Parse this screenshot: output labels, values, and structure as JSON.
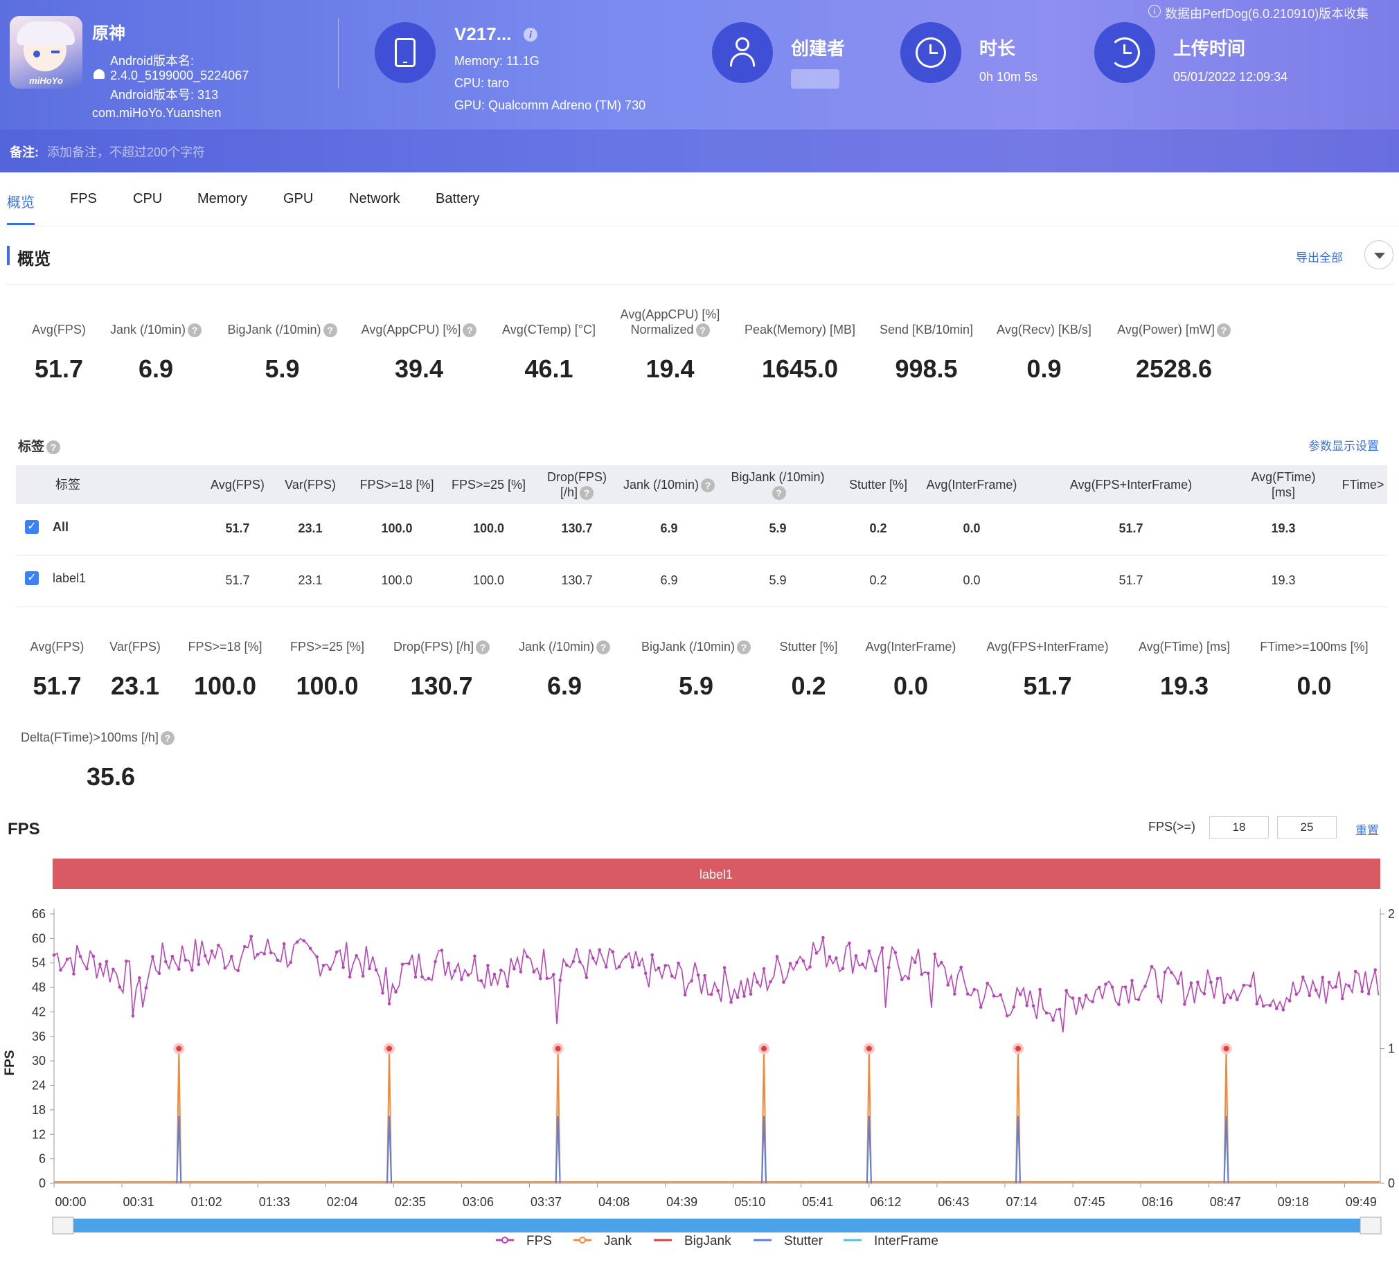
{
  "app": {
    "name": "原神",
    "version_name_label": "Android版本名:",
    "version_name": "2.4.0_5199000_5224067",
    "version_code_label": "Android版本号: 313",
    "package": "com.miHoYo.Yuanshen",
    "logo_text": "miHoYo"
  },
  "device": {
    "name": "V217...",
    "memory": "Memory: 11.1G",
    "cpu": "CPU: taro",
    "gpu": "GPU: Qualcomm Adreno (TM) 730"
  },
  "creator": {
    "label": "创建者"
  },
  "duration": {
    "label": "时长",
    "value": "0h 10m 5s"
  },
  "upload": {
    "label": "上传时间",
    "value": "05/01/2022 12:09:34"
  },
  "source_note": "数据由PerfDog(6.0.210910)版本收集",
  "note": {
    "label": "备注:",
    "placeholder": "添加备注，不超过200个字符"
  },
  "tabs": [
    "概览",
    "FPS",
    "CPU",
    "Memory",
    "GPU",
    "Network",
    "Battery"
  ],
  "overview": {
    "title": "概览",
    "export": "导出全部",
    "metrics": [
      {
        "label": "Avg(FPS)",
        "value": "51.7"
      },
      {
        "label": "Jank (/10min)",
        "value": "6.9"
      },
      {
        "label": "BigJank (/10min)",
        "value": "5.9"
      },
      {
        "label": "Avg(AppCPU) [%]",
        "value": "39.4"
      },
      {
        "label": "Avg(CTemp) [°C]",
        "value": "46.1"
      },
      {
        "label": "Avg(AppCPU) [%]",
        "label2": "Normalized",
        "value": "19.4"
      },
      {
        "label": "Peak(Memory) [MB]",
        "value": "1645.0"
      },
      {
        "label": "Send [KB/10min]",
        "value": "998.5"
      },
      {
        "label": "Avg(Recv) [KB/s]",
        "value": "0.9"
      },
      {
        "label": "Avg(Power) [mW]",
        "value": "2528.6"
      }
    ]
  },
  "tags": {
    "title": "标签",
    "settings": "参数显示设置",
    "headers": [
      "标签",
      "Avg(FPS)",
      "Var(FPS)",
      "FPS>=18 [%]",
      "FPS>=25 [%]",
      "Drop(FPS)",
      "[/h]",
      "Jank (/10min)",
      "BigJank (/10min)",
      "Stutter [%]",
      "Avg(InterFrame)",
      "Avg(FPS+InterFrame)",
      "Avg(FTime)",
      "[ms]",
      "FTime>"
    ],
    "rows": [
      {
        "name": "All",
        "values": [
          "51.7",
          "23.1",
          "100.0",
          "100.0",
          "130.7",
          "6.9",
          "5.9",
          "0.2",
          "0.0",
          "51.7",
          "19.3"
        ]
      },
      {
        "name": "label1",
        "values": [
          "51.7",
          "23.1",
          "100.0",
          "100.0",
          "130.7",
          "6.9",
          "5.9",
          "0.2",
          "0.0",
          "51.7",
          "19.3"
        ]
      }
    ]
  },
  "fps_metrics": [
    {
      "label": "Avg(FPS)",
      "value": "51.7"
    },
    {
      "label": "Var(FPS)",
      "value": "23.1"
    },
    {
      "label": "FPS>=18 [%]",
      "value": "100.0"
    },
    {
      "label": "FPS>=25 [%]",
      "value": "100.0"
    },
    {
      "label": "Drop(FPS) [/h]",
      "value": "130.7"
    },
    {
      "label": "Jank (/10min)",
      "value": "6.9"
    },
    {
      "label": "BigJank (/10min)",
      "value": "5.9"
    },
    {
      "label": "Stutter [%]",
      "value": "0.2"
    },
    {
      "label": "Avg(InterFrame)",
      "value": "0.0"
    },
    {
      "label": "Avg(FPS+InterFrame)",
      "value": "51.7"
    },
    {
      "label": "Avg(FTime) [ms]",
      "value": "19.3"
    },
    {
      "label": "FTime>=100ms [%]",
      "value": "0.0"
    },
    {
      "label": "Delta(FTime)>100ms [/h]",
      "value": "35.6"
    }
  ],
  "fps_section": {
    "title": "FPS",
    "threshold_label": "FPS(>=)",
    "threshold1": "18",
    "threshold2": "25",
    "reset": "重置"
  },
  "chart_data": {
    "type": "line",
    "band_label": "label1",
    "ylabel": "FPS",
    "ylim": [
      0,
      66
    ],
    "yticks": [
      "0",
      "6",
      "12",
      "18",
      "24",
      "30",
      "36",
      "42",
      "48",
      "54",
      "60",
      "66"
    ],
    "y2ticks": [
      "0",
      "1",
      "2"
    ],
    "xlim_seconds": [
      0,
      605
    ],
    "xticks": [
      "00:00",
      "00:31",
      "01:02",
      "01:33",
      "02:04",
      "02:35",
      "03:06",
      "03:37",
      "04:08",
      "04:39",
      "05:10",
      "05:41",
      "06:12",
      "06:43",
      "07:14",
      "07:45",
      "08:16",
      "08:47",
      "09:18",
      "09:49"
    ],
    "series": [
      {
        "name": "FPS",
        "color": "#b844b8",
        "anchors_x_seconds": [
          0,
          20,
          30,
          36,
          40,
          45,
          60,
          80,
          100,
          120,
          140,
          150,
          160,
          170,
          185,
          200,
          220,
          240,
          260,
          280,
          300,
          320,
          330,
          345,
          360,
          380,
          400,
          420,
          440,
          460,
          480,
          500,
          520,
          540,
          560,
          580,
          600,
          605
        ],
        "anchors_y": [
          56,
          54,
          51,
          50,
          45,
          54,
          56,
          56,
          57,
          55,
          55,
          50,
          52,
          54,
          54,
          52,
          54,
          54,
          53,
          51,
          49,
          48,
          52,
          57,
          56,
          54,
          53,
          47,
          44,
          44,
          48,
          49,
          48,
          49,
          46,
          48,
          50,
          50
        ]
      },
      {
        "name": "Jank",
        "color": "#f0893c",
        "spikes_x_seconds": [
          57,
          153,
          230,
          324,
          372,
          440,
          535
        ],
        "spike_height": 1
      },
      {
        "name": "BigJank",
        "color": "#d94040"
      },
      {
        "name": "Stutter",
        "color": "#5b7fe0",
        "spikes_x_seconds": [
          57,
          153,
          230,
          324,
          372,
          440,
          535
        ],
        "spike_height": 0.5
      },
      {
        "name": "InterFrame",
        "color": "#4fc3e0"
      }
    ],
    "legend": [
      "FPS",
      "Jank",
      "BigJank",
      "Stutter",
      "InterFrame"
    ]
  }
}
